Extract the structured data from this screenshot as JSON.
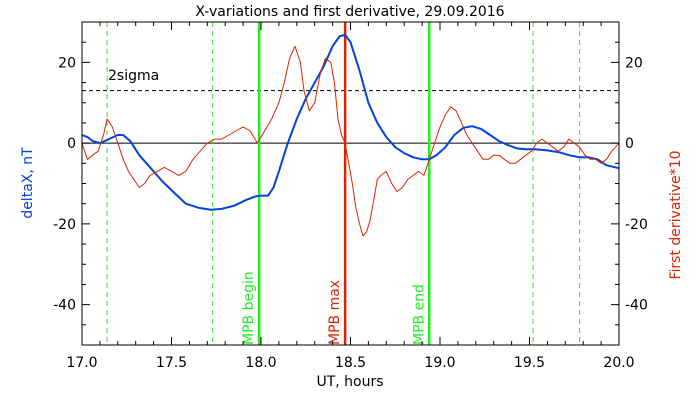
{
  "chart_data": {
    "type": "line",
    "title": "X-variations and first derivative, 29.09.2016",
    "xlabel": "UT, hours",
    "ylabel_left": "deltaX, nT",
    "ylabel_right": "First derivative*10",
    "xlim": [
      17.0,
      20.0
    ],
    "ylim": [
      -50,
      30
    ],
    "xticks": [
      "17.0",
      "17.5",
      "18.0",
      "18.5",
      "19.0",
      "19.5",
      "20.0"
    ],
    "yticks": [
      "-40",
      "-20",
      "0",
      "20"
    ],
    "series": [
      {
        "name": "deltaX, nT",
        "color": "#0044dd",
        "x": [
          17.0,
          17.03,
          17.06,
          17.1,
          17.15,
          17.2,
          17.23,
          17.27,
          17.32,
          17.38,
          17.45,
          17.52,
          17.58,
          17.65,
          17.72,
          17.78,
          17.85,
          17.92,
          17.97,
          18.0,
          18.04,
          18.07,
          18.1,
          18.15,
          18.2,
          18.25,
          18.3,
          18.35,
          18.4,
          18.44,
          18.47,
          18.5,
          18.55,
          18.6,
          18.65,
          18.7,
          18.75,
          18.8,
          18.85,
          18.9,
          18.94,
          18.98,
          19.03,
          19.08,
          19.13,
          19.18,
          19.23,
          19.28,
          19.33,
          19.38,
          19.43,
          19.48,
          19.53,
          19.6,
          19.67,
          19.72,
          19.78,
          19.83,
          19.88,
          19.93,
          20.0
        ],
        "y": [
          2,
          1.5,
          0.5,
          0,
          1,
          2,
          2,
          0.5,
          -3,
          -6,
          -9.5,
          -12.5,
          -15,
          -16,
          -16.5,
          -16.3,
          -15.5,
          -14,
          -13.2,
          -13,
          -13,
          -11,
          -7,
          0,
          6,
          11,
          15,
          19,
          24,
          26.5,
          26.8,
          25,
          18,
          10,
          5,
          1.5,
          -1,
          -2.5,
          -3.5,
          -4,
          -4,
          -3,
          -1,
          2,
          3.8,
          4.2,
          3.5,
          2,
          0.5,
          -0.5,
          -1.3,
          -1.5,
          -1.5,
          -1.8,
          -2.3,
          -3,
          -3.5,
          -3.5,
          -4,
          -5.5,
          -6.2
        ]
      },
      {
        "name": "First derivative*10",
        "color": "#dd2200",
        "x": [
          17.0,
          17.03,
          17.06,
          17.09,
          17.12,
          17.14,
          17.17,
          17.2,
          17.23,
          17.26,
          17.29,
          17.32,
          17.35,
          17.38,
          17.42,
          17.46,
          17.5,
          17.54,
          17.58,
          17.62,
          17.66,
          17.7,
          17.74,
          17.78,
          17.82,
          17.86,
          17.9,
          17.94,
          17.98,
          18.02,
          18.06,
          18.1,
          18.13,
          18.16,
          18.19,
          18.22,
          18.24,
          18.27,
          18.3,
          18.33,
          18.36,
          18.39,
          18.41,
          18.43,
          18.45,
          18.47,
          18.49,
          18.51,
          18.53,
          18.55,
          18.57,
          18.59,
          18.61,
          18.63,
          18.65,
          18.67,
          18.7,
          18.73,
          18.76,
          18.79,
          18.82,
          18.85,
          18.88,
          18.91,
          18.94,
          18.97,
          19.0,
          19.03,
          19.06,
          19.09,
          19.12,
          19.15,
          19.18,
          19.21,
          19.24,
          19.27,
          19.3,
          19.33,
          19.36,
          19.39,
          19.42,
          19.45,
          19.48,
          19.51,
          19.54,
          19.57,
          19.6,
          19.63,
          19.66,
          19.69,
          19.72,
          19.75,
          19.78,
          19.81,
          19.84,
          19.87,
          19.9,
          19.93,
          19.96,
          20.0
        ],
        "y": [
          0,
          -4,
          -3,
          -2,
          2,
          6,
          4,
          0,
          -4,
          -7,
          -9,
          -11,
          -10,
          -8,
          -7,
          -6,
          -7,
          -8,
          -7,
          -4,
          -2,
          0,
          1,
          1,
          2,
          3,
          4,
          3,
          0,
          3,
          6,
          10,
          15,
          21,
          24,
          20,
          13,
          8,
          10,
          17,
          21,
          20,
          15,
          6,
          2,
          0,
          -5,
          -10,
          -16,
          -20,
          -23,
          -22,
          -19,
          -14,
          -9,
          -8,
          -7,
          -10,
          -12,
          -11,
          -9,
          -8,
          -7,
          -8,
          -4,
          0,
          4,
          7,
          9,
          8,
          5,
          2,
          0,
          -2,
          -4,
          -4,
          -3,
          -3,
          -4,
          -5,
          -5,
          -4,
          -3,
          -2,
          0,
          1,
          0,
          -1,
          -2,
          -1,
          1,
          0,
          -1,
          -3,
          -4,
          -4,
          -5,
          -4,
          -2,
          0
        ]
      }
    ],
    "threshold": {
      "label": "2sigma",
      "y": 13,
      "style": "dashed",
      "color": "#000000"
    },
    "zero_line": {
      "y": 0,
      "color": "#000000"
    },
    "vertical_markers": [
      {
        "x": 17.14,
        "style": "dashed",
        "color": "#33dd33",
        "label": ""
      },
      {
        "x": 17.73,
        "style": "dashed",
        "color": "#33dd33",
        "label": ""
      },
      {
        "x": 17.99,
        "style": "solid",
        "color": "#22ee22",
        "label": "MPB begin"
      },
      {
        "x": 18.47,
        "style": "solid",
        "color": "#dd2200",
        "label": "MPB max"
      },
      {
        "x": 18.94,
        "style": "solid",
        "color": "#22ee22",
        "label": "MPB end"
      },
      {
        "x": 19.52,
        "style": "dashed",
        "color": "#33dd33",
        "label": ""
      },
      {
        "x": 19.78,
        "style": "dashed",
        "color": "#33dd33",
        "label": ""
      }
    ]
  }
}
